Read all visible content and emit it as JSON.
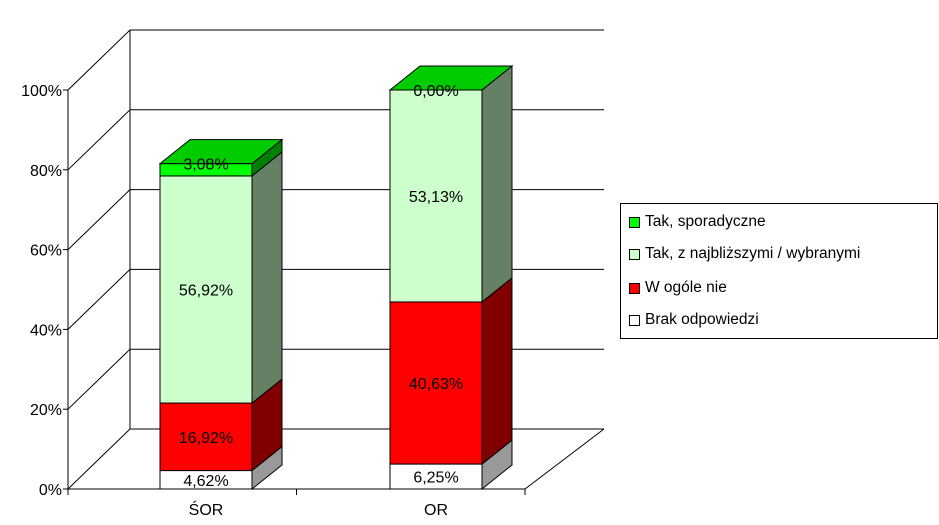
{
  "chart_data": {
    "type": "bar",
    "stacked": true,
    "three_d": true,
    "categories": [
      "ŚOR",
      "OR"
    ],
    "series": [
      {
        "name": "Brak odpowiedzi",
        "values": [
          4.62,
          6.25
        ],
        "labels": [
          "4,62%",
          "6,25%"
        ],
        "color": "#FFFFFF",
        "side_color": "#999999",
        "top_color": "#CCCCCC"
      },
      {
        "name": "W ogóle nie",
        "values": [
          16.92,
          40.63
        ],
        "labels": [
          "16,92%",
          "40,63%"
        ],
        "color": "#FF0000",
        "side_color": "#800000",
        "top_color": "#C00000"
      },
      {
        "name": "Tak, z najbliższymi / wybranymi",
        "values": [
          56.92,
          53.13
        ],
        "labels": [
          "56,92%",
          "53,13%"
        ],
        "color": "#CCFFCC",
        "side_color": "#668066",
        "top_color": "#99CC99"
      },
      {
        "name": "Tak, sporadyczne",
        "values": [
          3.08,
          0.0
        ],
        "labels": [
          "3,08%",
          "0,00%"
        ],
        "color": "#00FF00",
        "side_color": "#008000",
        "top_color": "#00CC00"
      }
    ],
    "y_ticks": [
      "0%",
      "20%",
      "40%",
      "60%",
      "80%",
      "100%"
    ],
    "ylim": [
      0,
      100
    ],
    "grid": true,
    "legend_position": "right",
    "legend_order": [
      "Tak, sporadyczne",
      "Tak, z najbliższymi / wybranymi",
      "W ogóle nie",
      "Brak odpowiedzi"
    ]
  }
}
